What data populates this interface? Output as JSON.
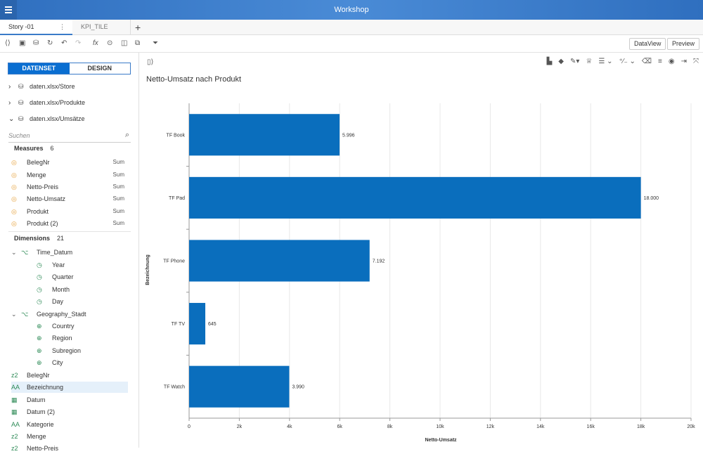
{
  "shell": {
    "title": "Workshop",
    "menu_icon": "hamburger-icon"
  },
  "tabs": [
    {
      "label": "Story -01"
    },
    {
      "label": "KPI_TILE"
    }
  ],
  "toolbar": {
    "dataview_label": "DataView",
    "preview_label": "Preview"
  },
  "panel": {
    "datenset_label": "DATENSET",
    "design_label": "DESIGN",
    "datasets": [
      {
        "label": "daten.xlsx/Store"
      },
      {
        "label": "daten.xlsx/Produkte"
      },
      {
        "label": "daten.xlsx/Umsätze"
      }
    ],
    "search_placeholder": "Suchen",
    "measures_label": "Measures",
    "measures_count": "6",
    "measures": [
      {
        "label": "BelegNr",
        "agg": "Sum"
      },
      {
        "label": "Menge",
        "agg": "Sum"
      },
      {
        "label": "Netto-Preis",
        "agg": "Sum"
      },
      {
        "label": "Netto-Umsatz",
        "agg": "Sum"
      },
      {
        "label": "Produkt",
        "agg": "Sum"
      },
      {
        "label": "Produkt (2)",
        "agg": "Sum"
      }
    ],
    "dimensions_label": "Dimensions",
    "dimensions_count": "21",
    "time_group": "Time_Datum",
    "time_items": [
      "Year",
      "Quarter",
      "Month",
      "Day"
    ],
    "geo_group": "Geography_Stadt",
    "geo_items": [
      "Country",
      "Region",
      "Subregion",
      "City"
    ],
    "dim_items": [
      {
        "type": "z2",
        "label": "BelegNr"
      },
      {
        "type": "AA",
        "label": "Bezeichnung"
      },
      {
        "type": "date",
        "label": "Datum"
      },
      {
        "type": "date",
        "label": "Datum (2)"
      },
      {
        "type": "AA",
        "label": "Kategorie"
      },
      {
        "type": "z2",
        "label": "Menge"
      },
      {
        "type": "z2",
        "label": "Netto-Preis"
      }
    ]
  },
  "chart_data": {
    "type": "bar",
    "orientation": "horizontal",
    "title": "Netto-Umsatz nach Produkt",
    "xlabel": "Netto-Umsatz",
    "ylabel": "Bezeichnung",
    "categories": [
      "TF Book",
      "TF Pad",
      "TF Phone",
      "TF TV",
      "TF Watch"
    ],
    "values": [
      5996,
      18000,
      7192,
      645,
      3990
    ],
    "value_labels": [
      "5.996",
      "18.000",
      "7.192",
      "645",
      "3.990"
    ],
    "xlim": [
      0,
      20000
    ],
    "xticks": [
      "0",
      "2k",
      "4k",
      "6k",
      "8k",
      "10k",
      "12k",
      "14k",
      "16k",
      "18k",
      "20k"
    ],
    "bar_color": "#0a6ebd",
    "grid": true
  }
}
